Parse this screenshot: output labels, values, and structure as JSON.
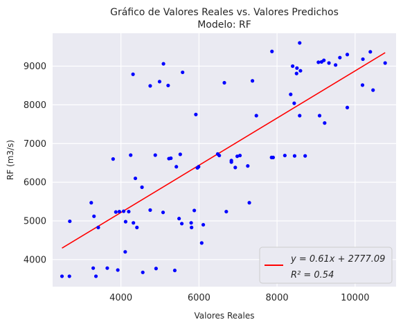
{
  "chart_data": {
    "type": "scatter",
    "title": "Gráfico de Valores Reales vs. Valores Predichos",
    "subtitle": "Modelo: RF",
    "xlabel": "Valores Reales",
    "ylabel": "RF (m3/s)",
    "xlim": [
      2250,
      11050
    ],
    "ylim": [
      3300,
      9850
    ],
    "xticks": [
      4000,
      6000,
      8000,
      10000
    ],
    "yticks": [
      4000,
      5000,
      6000,
      7000,
      8000,
      9000
    ],
    "grid": true,
    "legend_position": "bottom-right",
    "point_color": "#0000ff",
    "background_color": "#eaeaf2",
    "series": [
      {
        "type": "scatter",
        "x": [
          2490,
          2680,
          2690,
          3240,
          3290,
          3310,
          3360,
          3420,
          3650,
          3800,
          3870,
          3920,
          3960,
          4070,
          4120,
          4110,
          4200,
          4250,
          4310,
          4320,
          4370,
          4410,
          4540,
          4560,
          4750,
          4750,
          4880,
          4900,
          4990,
          5080,
          5090,
          5210,
          5230,
          5280,
          5380,
          5420,
          5490,
          5520,
          5560,
          5580,
          5800,
          5810,
          5880,
          5920,
          5960,
          5990,
          6070,
          6110,
          6480,
          6520,
          6650,
          6700,
          6830,
          6830,
          6930,
          6980,
          7050,
          7250,
          7290,
          7370,
          7470,
          7860,
          7870,
          7900,
          8200,
          8350,
          8400,
          8440,
          8450,
          8500,
          8510,
          8580,
          8580,
          8600,
          8720,
          9060,
          9090,
          9140,
          9200,
          9220,
          9330,
          9500,
          9610,
          9800,
          9800,
          10190,
          10200,
          10390,
          10460,
          10770
        ],
        "y": [
          3570,
          3570,
          4990,
          5470,
          3780,
          5120,
          3570,
          4830,
          3780,
          6600,
          5230,
          3730,
          5240,
          5250,
          4980,
          4200,
          5240,
          6700,
          8790,
          4950,
          6100,
          4830,
          5870,
          3670,
          8490,
          5280,
          6700,
          3770,
          8600,
          5220,
          9060,
          8500,
          6610,
          6620,
          3720,
          6400,
          5060,
          6720,
          4930,
          8840,
          4950,
          4830,
          5270,
          7750,
          6370,
          6400,
          4430,
          4900,
          6730,
          6690,
          8570,
          5240,
          6520,
          6560,
          6380,
          6670,
          6690,
          6420,
          5470,
          8620,
          7720,
          6640,
          9380,
          6640,
          6690,
          8270,
          9000,
          8040,
          6680,
          8810,
          8950,
          7720,
          9600,
          8880,
          6680,
          9100,
          7720,
          9110,
          9150,
          7530,
          9080,
          9030,
          9220,
          7930,
          9300,
          8510,
          9180,
          9370,
          8380,
          9080
        ]
      },
      {
        "type": "line",
        "name": "$y = 0.61x + 2777.09$\n$R^2 = 0.54$",
        "color": "#ff0000",
        "slope": 0.61,
        "intercept": 2777.09,
        "x_range": [
          2490,
          10770
        ]
      }
    ]
  },
  "legend": {
    "line1": "y = 0.61x + 2777.09",
    "line2": "R² = 0.54"
  }
}
